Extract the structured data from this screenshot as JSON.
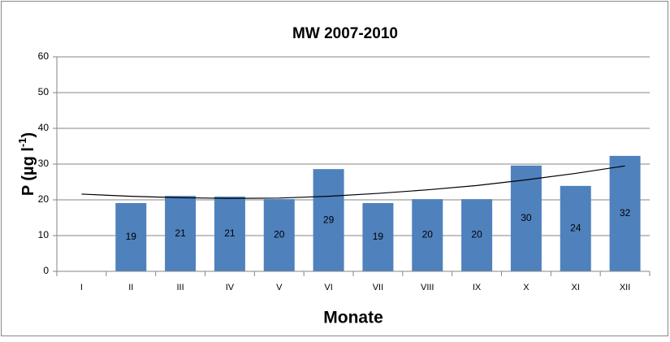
{
  "chart_data": {
    "type": "bar",
    "title": "MW 2007-2010",
    "x_label": "Monate",
    "y_label": {
      "text": "P (µg l",
      "superscript": "-1",
      "close": ")"
    },
    "categories": [
      "I",
      "II",
      "III",
      "IV",
      "V",
      "VI",
      "VII",
      "VIII",
      "IX",
      "X",
      "XI",
      "XII"
    ],
    "values": [
      null,
      19.1,
      21.1,
      20.9,
      20.2,
      28.6,
      19.1,
      20.2,
      20.2,
      29.6,
      23.9,
      32.3
    ],
    "value_labels": [
      null,
      "19",
      "21",
      "21",
      "20",
      "29",
      "19",
      "20",
      "20",
      "30",
      "24",
      "32"
    ],
    "color": "#4f81bd",
    "trendline": {
      "values": [
        21.6,
        21.0,
        20.6,
        20.4,
        20.5,
        21.0,
        21.8,
        22.8,
        24.0,
        25.6,
        27.4,
        29.5
      ],
      "color": "#000000"
    },
    "ylim": [
      0,
      60
    ],
    "yticks": [
      0,
      10,
      20,
      30,
      40,
      50,
      60
    ],
    "grid": true
  }
}
